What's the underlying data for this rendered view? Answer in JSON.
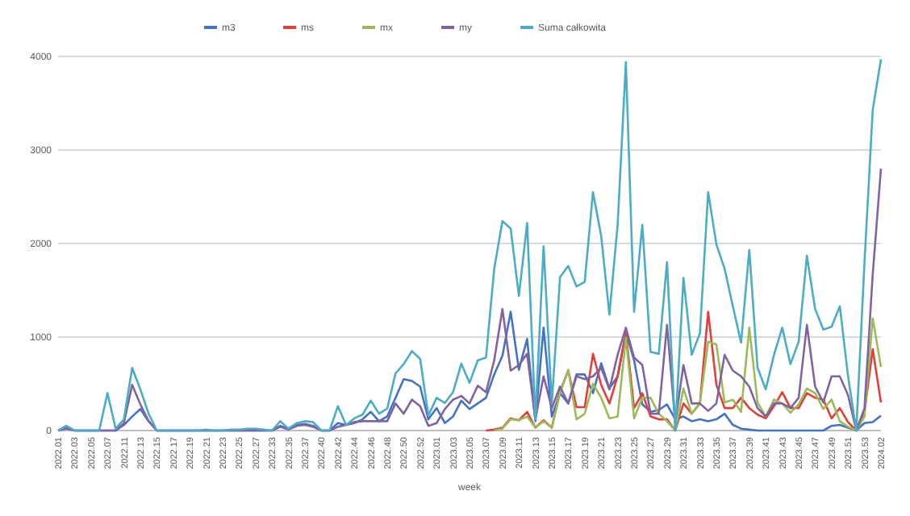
{
  "chart_data": {
    "type": "line",
    "xlabel": "week",
    "legend": "top",
    "grid": "y",
    "ylim": [
      0,
      4000
    ],
    "yticks": [
      0,
      1000,
      2000,
      3000,
      4000
    ],
    "categories": [
      "2022.01",
      null,
      "2022.03",
      null,
      "2022.05",
      null,
      "2022.07",
      null,
      "2022.11",
      null,
      "2022.13",
      null,
      "2022.15",
      null,
      "2022.17",
      null,
      "2022.19",
      null,
      "2022.21",
      null,
      "2022.23",
      null,
      "2022.25",
      null,
      "2022.27",
      null,
      "2022.33",
      null,
      "2022.35",
      null,
      "2022.37",
      null,
      "2022.40",
      null,
      "2022.42",
      null,
      "2022.44",
      null,
      "2022.46",
      null,
      "2022.48",
      null,
      "2022.50",
      null,
      "2022.52",
      null,
      "2023.01",
      null,
      "2023.03",
      null,
      "2023.05",
      null,
      "2023.07",
      null,
      "2023.09",
      null,
      "2023.11",
      null,
      "2023.13",
      null,
      "2023.15",
      null,
      "2023.17",
      null,
      "2023.19",
      null,
      "2023.21",
      null,
      "2023.23",
      null,
      "2023.25",
      null,
      "2023.27",
      null,
      "2023.29",
      null,
      "2023.31",
      null,
      "2023.33",
      null,
      "2023.35",
      null,
      "2023.37",
      null,
      "2023.39",
      null,
      "2023.41",
      null,
      "2023.43",
      null,
      "2023.45",
      null,
      "2023.47",
      null,
      "2023.49",
      null,
      "2023.51",
      null,
      "2023.53",
      null,
      "2024.02"
    ],
    "series": [
      {
        "name": "m3",
        "color": "#4472c4",
        "values": [
          0,
          30,
          0,
          0,
          0,
          0,
          0,
          0,
          60,
          150,
          230,
          100,
          0,
          0,
          0,
          0,
          0,
          0,
          0,
          0,
          0,
          0,
          0,
          0,
          0,
          0,
          0,
          50,
          20,
          60,
          70,
          50,
          0,
          0,
          80,
          60,
          80,
          120,
          200,
          100,
          150,
          350,
          550,
          530,
          470,
          120,
          240,
          80,
          150,
          320,
          230,
          290,
          350,
          600,
          800,
          1270,
          650,
          980,
          100,
          1100,
          150,
          400,
          290,
          600,
          600,
          400,
          720,
          450,
          580,
          1050,
          750,
          280,
          200,
          220,
          280,
          120,
          150,
          100,
          120,
          100,
          120,
          180,
          60,
          20,
          10,
          0,
          0,
          0,
          0,
          0,
          0,
          0,
          0,
          0,
          50,
          60,
          30,
          0,
          80,
          90,
          160
        ]
      },
      {
        "name": "ms",
        "color": "#e0403a",
        "values": [
          null,
          null,
          null,
          null,
          null,
          null,
          null,
          null,
          null,
          null,
          null,
          null,
          null,
          null,
          null,
          null,
          null,
          null,
          null,
          null,
          null,
          null,
          null,
          null,
          null,
          null,
          null,
          null,
          null,
          null,
          null,
          null,
          null,
          null,
          null,
          null,
          null,
          null,
          null,
          null,
          null,
          null,
          null,
          null,
          null,
          null,
          null,
          null,
          null,
          null,
          null,
          null,
          0,
          10,
          30,
          130,
          110,
          200,
          30,
          110,
          30,
          420,
          640,
          250,
          250,
          820,
          490,
          290,
          580,
          1040,
          240,
          400,
          150,
          120,
          120,
          0,
          290,
          180,
          290,
          1270,
          490,
          240,
          240,
          350,
          240,
          170,
          130,
          260,
          410,
          240,
          240,
          400,
          350,
          330,
          130,
          240,
          90,
          0,
          200,
          870,
          300
        ]
      },
      {
        "name": "mx",
        "color": "#9bbb59",
        "values": [
          null,
          null,
          null,
          null,
          null,
          null,
          null,
          null,
          null,
          null,
          null,
          null,
          null,
          null,
          null,
          null,
          null,
          null,
          null,
          null,
          null,
          null,
          null,
          null,
          null,
          null,
          null,
          null,
          null,
          null,
          null,
          null,
          null,
          null,
          null,
          null,
          null,
          null,
          null,
          null,
          null,
          null,
          null,
          null,
          null,
          null,
          null,
          null,
          null,
          null,
          null,
          null,
          null,
          0,
          20,
          120,
          110,
          150,
          30,
          100,
          30,
          400,
          650,
          120,
          180,
          500,
          350,
          130,
          150,
          990,
          130,
          350,
          350,
          180,
          100,
          0,
          450,
          180,
          290,
          950,
          920,
          300,
          330,
          200,
          1100,
          300,
          150,
          330,
          290,
          190,
          280,
          450,
          400,
          230,
          330,
          100,
          40,
          0,
          150,
          1200,
          680
        ]
      },
      {
        "name": "my",
        "color": "#8064a2",
        "values": [
          0,
          20,
          0,
          0,
          0,
          0,
          0,
          0,
          80,
          490,
          280,
          100,
          0,
          0,
          0,
          0,
          0,
          0,
          0,
          0,
          0,
          0,
          0,
          0,
          0,
          0,
          0,
          40,
          10,
          50,
          60,
          40,
          0,
          0,
          40,
          60,
          90,
          100,
          100,
          100,
          100,
          290,
          180,
          330,
          260,
          50,
          80,
          230,
          330,
          370,
          290,
          480,
          410,
          750,
          1300,
          640,
          700,
          820,
          120,
          580,
          240,
          470,
          290,
          580,
          550,
          580,
          670,
          440,
          810,
          1100,
          780,
          700,
          180,
          180,
          1130,
          90,
          700,
          290,
          290,
          210,
          290,
          810,
          640,
          580,
          470,
          240,
          150,
          290,
          290,
          240,
          350,
          1130,
          470,
          300,
          580,
          580,
          380,
          0,
          240,
          1670,
          2800
        ]
      },
      {
        "name": "Suma całkowita",
        "color": "#4bacc6",
        "values": [
          0,
          50,
          0,
          0,
          0,
          0,
          400,
          20,
          120,
          670,
          440,
          180,
          0,
          0,
          0,
          0,
          0,
          0,
          10,
          0,
          0,
          10,
          10,
          20,
          20,
          10,
          0,
          100,
          20,
          80,
          100,
          90,
          0,
          0,
          260,
          60,
          130,
          170,
          320,
          180,
          235,
          610,
          710,
          850,
          765,
          160,
          350,
          295,
          410,
          715,
          510,
          750,
          780,
          1730,
          2240,
          2160,
          1440,
          2220,
          120,
          1970,
          290,
          1640,
          1760,
          1540,
          1590,
          2550,
          2080,
          1240,
          2200,
          3940,
          1270,
          2200,
          840,
          820,
          1800,
          0,
          1630,
          810,
          1040,
          2550,
          1990,
          1730,
          1330,
          940,
          1930,
          670,
          440,
          810,
          1100,
          710,
          950,
          1870,
          1300,
          1080,
          1110,
          1330,
          580,
          0,
          1800,
          3430,
          3970
        ]
      }
    ]
  }
}
